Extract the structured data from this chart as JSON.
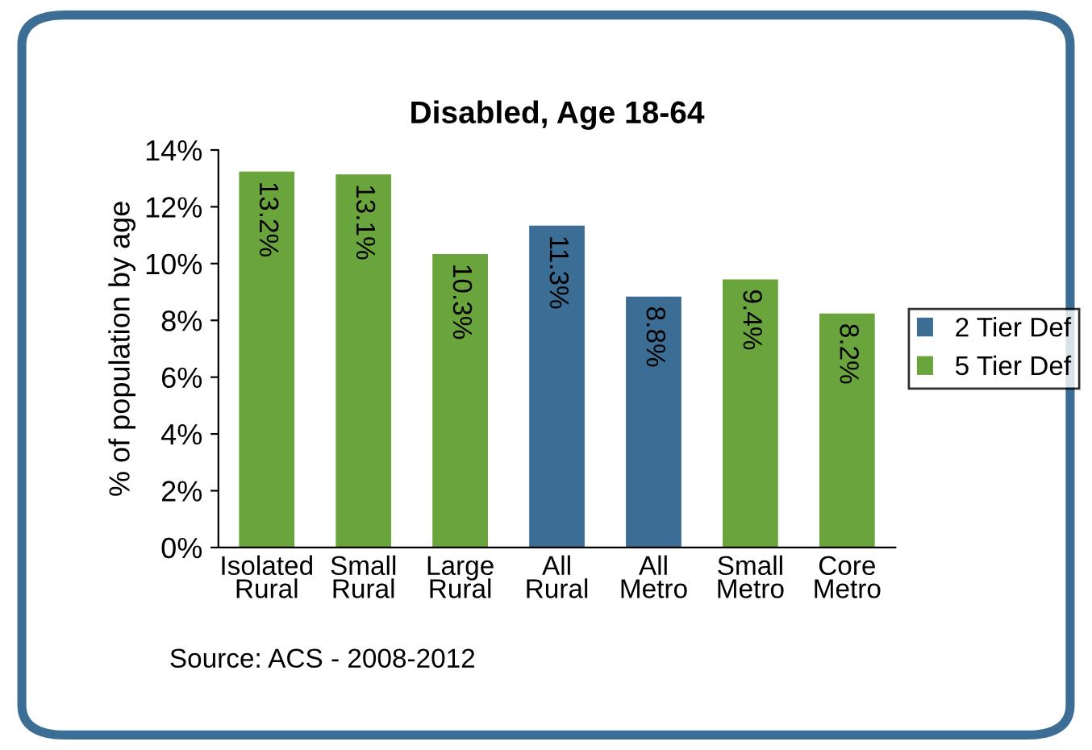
{
  "chart_data": {
    "type": "bar",
    "title": "Disabled, Age 18-64",
    "ylabel": "% of population by age",
    "categories": [
      "Isolated\nRural",
      "Small\nRural",
      "Large\nRural",
      "All\nRural",
      "All\nMetro",
      "Small\nMetro",
      "Core\nMetro"
    ],
    "series": [
      {
        "name": "2 Tier Def",
        "color": "#3c6e95",
        "values": [
          null,
          null,
          null,
          11.3,
          8.8,
          null,
          null
        ],
        "value_labels": [
          null,
          null,
          null,
          "11.3%",
          "8.8%",
          null,
          null
        ]
      },
      {
        "name": "5 Tier Def",
        "color": "#6aa43c",
        "values": [
          13.2,
          13.1,
          10.3,
          null,
          null,
          9.4,
          8.2
        ],
        "value_labels": [
          "13.2%",
          "13.1%",
          "10.3%",
          null,
          null,
          "9.4%",
          "8.2%"
        ]
      }
    ],
    "ylim": [
      0,
      14
    ],
    "yticks": [
      {
        "value": 0,
        "label": "0%"
      },
      {
        "value": 2,
        "label": "2%"
      },
      {
        "value": 4,
        "label": "4%"
      },
      {
        "value": 6,
        "label": "6%"
      },
      {
        "value": 8,
        "label": "8%"
      },
      {
        "value": 10,
        "label": "10%"
      },
      {
        "value": 12,
        "label": "12%"
      },
      {
        "value": 14,
        "label": "14%"
      }
    ],
    "grid": false,
    "legend": "right",
    "annotations": [
      "Source: ACS - 2008-2012"
    ]
  }
}
